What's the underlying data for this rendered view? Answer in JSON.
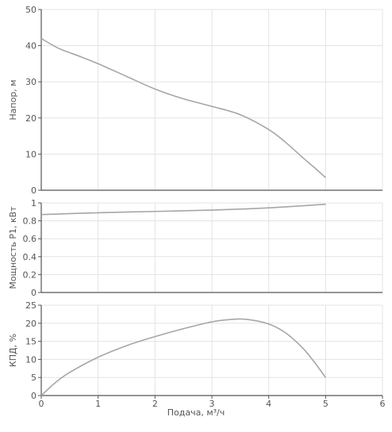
{
  "chart_data": [
    {
      "type": "line",
      "ylabel": "Напор, м",
      "ylim": [
        0,
        50
      ],
      "yticks": [
        0,
        10,
        20,
        30,
        40,
        50
      ],
      "ytick_labels": [
        "0",
        "10",
        "20",
        "30",
        "40",
        "50"
      ],
      "xlim": [
        0,
        6
      ],
      "grid": true,
      "series": [
        {
          "x": [
            0,
            0.3,
            0.7,
            1.0,
            1.5,
            2.0,
            2.5,
            3.0,
            3.5,
            4.0,
            4.3,
            4.6,
            4.8,
            5.0
          ],
          "y": [
            42,
            39.3,
            36.9,
            35,
            31.5,
            28,
            25.3,
            23.2,
            20.9,
            16.8,
            13.2,
            9.0,
            6.3,
            3.5
          ]
        }
      ]
    },
    {
      "type": "line",
      "ylabel": "Мощность Р1, кВт",
      "ylim": [
        0,
        1
      ],
      "yticks": [
        0,
        0.2,
        0.4,
        0.6,
        0.8,
        1
      ],
      "ytick_labels": [
        "0",
        "0.2",
        "0.4",
        "0.6",
        "0.8",
        "1"
      ],
      "xlim": [
        0,
        6
      ],
      "grid": true,
      "series": [
        {
          "x": [
            0,
            1,
            2,
            3,
            4,
            5
          ],
          "y": [
            0.87,
            0.89,
            0.905,
            0.92,
            0.945,
            0.985
          ]
        }
      ]
    },
    {
      "type": "line",
      "ylabel": "КПД, %",
      "ylim": [
        0,
        25
      ],
      "yticks": [
        0,
        5,
        10,
        15,
        20,
        25
      ],
      "ytick_labels": [
        "0",
        "5",
        "10",
        "15",
        "20",
        "25"
      ],
      "xlim": [
        0,
        6
      ],
      "xticks": [
        0,
        1,
        2,
        3,
        4,
        5,
        6
      ],
      "xtick_labels": [
        "0",
        "1",
        "2",
        "3",
        "4",
        "5",
        "6"
      ],
      "xlabel": "Подача, м³/ч",
      "grid": true,
      "series": [
        {
          "x": [
            0,
            0.25,
            0.5,
            1.0,
            1.5,
            2.0,
            2.5,
            3.0,
            3.3,
            3.6,
            4.0,
            4.3,
            4.6,
            4.8,
            5.0
          ],
          "y": [
            0,
            3.6,
            6.4,
            10.6,
            13.8,
            16.3,
            18.5,
            20.4,
            21.0,
            21.1,
            19.8,
            17.3,
            13.1,
            9.3,
            5.0
          ]
        }
      ]
    }
  ],
  "colors": {
    "line": "#a6a6a6",
    "grid": "#e3e3e3",
    "axis": "#555555",
    "text": "#555555"
  }
}
